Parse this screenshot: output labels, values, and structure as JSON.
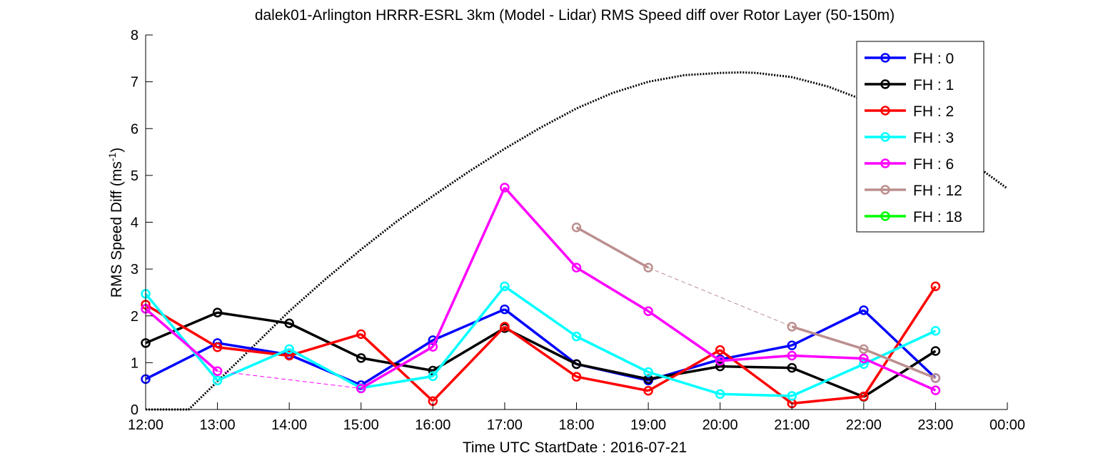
{
  "chart_data": {
    "type": "line",
    "title": "dalek01-Arlington HRRR-ESRL 3km (Model - Lidar) RMS Speed diff over Rotor Layer (50-150m)",
    "xlabel": "Time UTC    StartDate : 2016-07-21",
    "ylabel_main": "RMS Speed Diff (ms",
    "ylabel_sup": "-1",
    "ylabel_close": ")",
    "xlim": [
      12,
      24
    ],
    "ylim": [
      0,
      8
    ],
    "x_ticks": [
      {
        "x": 12,
        "label": "12:00"
      },
      {
        "x": 13,
        "label": "13:00"
      },
      {
        "x": 14,
        "label": "14:00"
      },
      {
        "x": 15,
        "label": "15:00"
      },
      {
        "x": 16,
        "label": "16:00"
      },
      {
        "x": 17,
        "label": "17:00"
      },
      {
        "x": 18,
        "label": "18:00"
      },
      {
        "x": 19,
        "label": "19:00"
      },
      {
        "x": 20,
        "label": "20:00"
      },
      {
        "x": 21,
        "label": "21:00"
      },
      {
        "x": 22,
        "label": "22:00"
      },
      {
        "x": 23,
        "label": "23:00"
      },
      {
        "x": 24,
        "label": "00:00"
      }
    ],
    "y_ticks": [
      0,
      1,
      2,
      3,
      4,
      5,
      6,
      7,
      8
    ],
    "grid": false,
    "legend_position": "top-right",
    "x": [
      12,
      13,
      14,
      15,
      16,
      17,
      18,
      19,
      20,
      21,
      22,
      23
    ],
    "series": [
      {
        "name": "FH : 0",
        "color": "#0000ff",
        "values": [
          0.65,
          1.42,
          1.17,
          0.52,
          1.48,
          2.14,
          0.97,
          0.62,
          1.07,
          1.37,
          2.12,
          0.67
        ]
      },
      {
        "name": "FH : 1",
        "color": "#000000",
        "values": [
          1.42,
          2.07,
          1.84,
          1.1,
          0.83,
          1.74,
          0.97,
          0.65,
          0.92,
          0.89,
          0.27,
          1.25
        ]
      },
      {
        "name": "FH : 2",
        "color": "#ff0000",
        "values": [
          2.24,
          1.33,
          1.15,
          1.61,
          0.18,
          1.77,
          0.7,
          0.4,
          1.27,
          0.13,
          0.28,
          2.63
        ]
      },
      {
        "name": "FH : 3",
        "color": "#00ffff",
        "values": [
          2.47,
          0.62,
          1.29,
          0.46,
          0.71,
          2.63,
          1.56,
          0.8,
          0.33,
          0.29,
          0.97,
          1.68
        ]
      },
      {
        "name": "FH : 6",
        "color": "#ff00ff",
        "values": [
          2.15,
          0.82,
          null,
          0.45,
          1.34,
          4.74,
          3.03,
          2.1,
          1.04,
          1.15,
          1.09,
          0.41
        ]
      },
      {
        "name": "FH : 12",
        "color": "#bc8f8f",
        "values": [
          null,
          null,
          null,
          null,
          null,
          null,
          3.89,
          3.03,
          null,
          1.77,
          1.29,
          0.67
        ]
      },
      {
        "name": "FH : 18",
        "color": "#00ff00",
        "values": [
          null,
          null,
          null,
          null,
          null,
          null,
          null,
          null,
          null,
          null,
          null,
          null
        ]
      }
    ],
    "reference_curve": {
      "style": "dotted",
      "color": "#000000",
      "x": [
        12,
        12.6,
        13,
        13.5,
        14,
        14.5,
        15,
        15.5,
        16,
        16.5,
        17,
        17.5,
        18,
        18.5,
        19,
        19.5,
        20,
        20.3,
        20.5,
        21,
        21.5,
        22,
        22.5,
        23,
        23.5,
        24
      ],
      "y": [
        0,
        0,
        0.6,
        1.35,
        2.1,
        2.78,
        3.42,
        4.02,
        4.56,
        5.08,
        5.57,
        6.02,
        6.43,
        6.76,
        7.0,
        7.14,
        7.19,
        7.2,
        7.19,
        7.1,
        6.9,
        6.61,
        6.25,
        5.8,
        5.28,
        4.72
      ]
    }
  }
}
